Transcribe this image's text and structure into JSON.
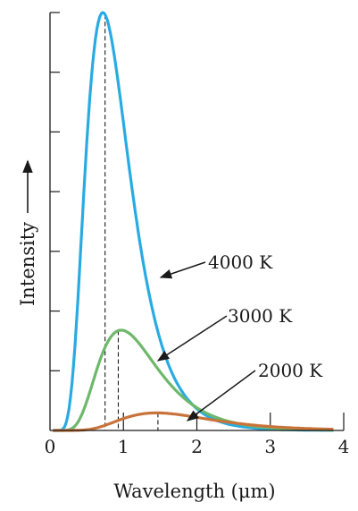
{
  "chart_data": {
    "type": "line",
    "xlabel": "Wavelength (μm)",
    "ylabel": "Intensity",
    "xlim": [
      0,
      4
    ],
    "ylim": [
      0,
      1
    ],
    "x_ticks": [
      0,
      1,
      2,
      3,
      4
    ],
    "x_tick_labels": [
      "0",
      "1",
      "2",
      "3",
      "4"
    ],
    "y_tick_count": 7,
    "y_ticks_labeled": false,
    "grid": false,
    "series": [
      {
        "name": "4000 K",
        "temperature_k": 4000,
        "color": "#29abe2",
        "peak_wavelength": 0.72,
        "peak_intensity": 1.0,
        "marked_wavelength": 0.75
      },
      {
        "name": "3000 K",
        "temperature_k": 3000,
        "color": "#6db86b",
        "peak_wavelength": 0.97,
        "peak_intensity": 0.24,
        "marked_wavelength": 0.93
      },
      {
        "name": "2000 K",
        "temperature_k": 2000,
        "color": "#c8733a",
        "peak_wavelength": 1.45,
        "peak_intensity": 0.042,
        "marked_wavelength": 1.47
      }
    ],
    "annotations": [
      {
        "text": "4000 K",
        "points_to": "4000 K"
      },
      {
        "text": "3000 K",
        "points_to": "3000 K"
      },
      {
        "text": "2000 K",
        "points_to": "2000 K"
      }
    ]
  }
}
